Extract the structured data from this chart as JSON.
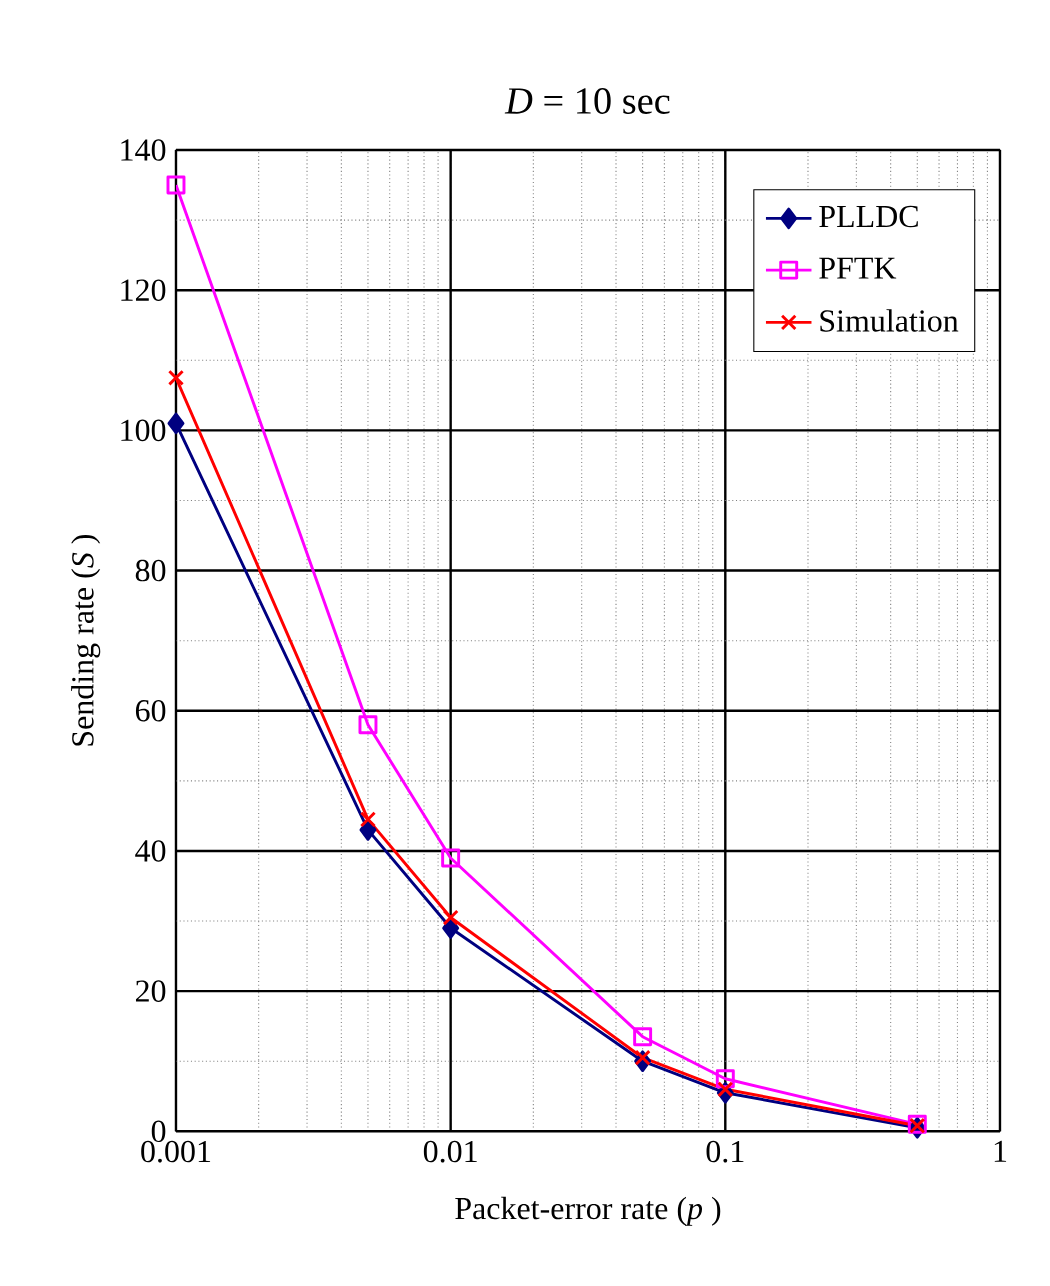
{
  "chart_data": {
    "type": "line",
    "title": "*D* = 10 sec",
    "xlabel": "Packet-error rate (*p* )",
    "ylabel": "Sending rate (*S* )",
    "x": [
      0.001,
      0.005,
      0.01,
      0.05,
      0.1,
      0.5
    ],
    "series": [
      {
        "name": "PLLDC",
        "color": "#000080",
        "marker": "diamond",
        "values": [
          101,
          43,
          29,
          10,
          5.5,
          0.5
        ]
      },
      {
        "name": "PFTK",
        "color": "#ff00ff",
        "marker": "square",
        "values": [
          135,
          58,
          39,
          13.5,
          7.5,
          1
        ]
      },
      {
        "name": "Simulation",
        "color": "#ff0000",
        "marker": "cross",
        "values": [
          107.5,
          44.5,
          30.5,
          10.5,
          6,
          0.8
        ]
      }
    ],
    "log": "x",
    "xlim": [
      0.001,
      1
    ],
    "xticks": [
      0.001,
      0.01,
      0.1,
      1
    ],
    "ylim": [
      0,
      140
    ],
    "yticks": [
      0,
      20,
      40,
      60,
      80,
      100,
      120,
      140
    ],
    "grid": true,
    "legend": "top right"
  }
}
